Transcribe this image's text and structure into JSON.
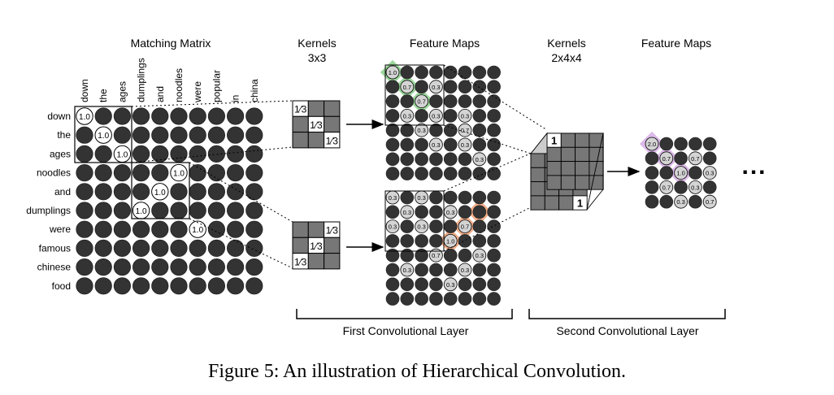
{
  "titles": {
    "matching_matrix": "Matching Matrix",
    "kernels1_line1": "Kernels",
    "kernels1_line2": "3x3",
    "feature_maps1": "Feature Maps",
    "kernels2_line1": "Kernels",
    "kernels2_line2": "2x4x4",
    "feature_maps2": "Feature Maps"
  },
  "matrix": {
    "column_words": [
      "down",
      "the",
      "ages",
      "dumplings",
      "and",
      "noodles",
      "were",
      "popular",
      "in",
      "china"
    ],
    "row_words": [
      "down",
      "the",
      "ages",
      "noodles",
      "and",
      "dumplings",
      "were",
      "famous",
      "chinese",
      "food"
    ],
    "matches": [
      {
        "row": 0,
        "col": 0,
        "label": "1.0"
      },
      {
        "row": 1,
        "col": 1,
        "label": "1.0"
      },
      {
        "row": 2,
        "col": 2,
        "label": "1.0"
      },
      {
        "row": 3,
        "col": 5,
        "label": "1.0"
      },
      {
        "row": 4,
        "col": 4,
        "label": "1.0"
      },
      {
        "row": 5,
        "col": 3,
        "label": "1.0"
      },
      {
        "row": 6,
        "col": 6,
        "label": "1.0"
      }
    ]
  },
  "kernel1": {
    "weight": "1⁄3",
    "diagonal": "main"
  },
  "kernel2": {
    "weight": "1⁄3",
    "diagonal": "anti"
  },
  "feature_map_top": {
    "highlight_color": "#8fd18f",
    "cells": [
      {
        "row": 0,
        "col": 0,
        "label": "1.0"
      },
      {
        "row": 1,
        "col": 1,
        "label": "0.7"
      },
      {
        "row": 1,
        "col": 3,
        "label": "0.3"
      },
      {
        "row": 2,
        "col": 2,
        "label": "0.7"
      },
      {
        "row": 3,
        "col": 1,
        "label": "0.3"
      },
      {
        "row": 3,
        "col": 3,
        "label": "0.3"
      },
      {
        "row": 3,
        "col": 5,
        "label": "0.3"
      },
      {
        "row": 4,
        "col": 2,
        "label": "0.3"
      },
      {
        "row": 4,
        "col": 5,
        "label": "0.7"
      },
      {
        "row": 5,
        "col": 3,
        "label": "0.3"
      },
      {
        "row": 5,
        "col": 5,
        "label": "0.3"
      },
      {
        "row": 6,
        "col": 6,
        "label": "0.3"
      }
    ]
  },
  "feature_map_bottom": {
    "highlight_color": "#f0a57c",
    "cells": [
      {
        "row": 0,
        "col": 0,
        "label": "0.3"
      },
      {
        "row": 0,
        "col": 2,
        "label": "0.3"
      },
      {
        "row": 1,
        "col": 1,
        "label": "0.3"
      },
      {
        "row": 1,
        "col": 4,
        "label": "0.3"
      },
      {
        "row": 2,
        "col": 0,
        "label": "0.3"
      },
      {
        "row": 2,
        "col": 2,
        "label": "0.3"
      },
      {
        "row": 2,
        "col": 5,
        "label": "0.7"
      },
      {
        "row": 3,
        "col": 4,
        "label": "1.0"
      },
      {
        "row": 4,
        "col": 3,
        "label": "0.7"
      },
      {
        "row": 4,
        "col": 6,
        "label": "0.3"
      },
      {
        "row": 5,
        "col": 1,
        "label": "0.3"
      },
      {
        "row": 5,
        "col": 5,
        "label": "0.3"
      },
      {
        "row": 6,
        "col": 4,
        "label": "0.3"
      }
    ]
  },
  "kernel3d": {
    "front_label": "1",
    "back_label": "1"
  },
  "feature_map2": {
    "highlight_color": "#d9b3e8",
    "cells": [
      {
        "row": 0,
        "col": 0,
        "label": "2.0"
      },
      {
        "row": 1,
        "col": 1,
        "label": "0.7"
      },
      {
        "row": 1,
        "col": 3,
        "label": "0.7"
      },
      {
        "row": 2,
        "col": 2,
        "label": "1.0"
      },
      {
        "row": 2,
        "col": 4,
        "label": "0.3"
      },
      {
        "row": 3,
        "col": 1,
        "label": "0.7"
      },
      {
        "row": 3,
        "col": 3,
        "label": "0.3"
      },
      {
        "row": 4,
        "col": 2,
        "label": "0.3"
      },
      {
        "row": 4,
        "col": 4,
        "label": "0.7"
      }
    ]
  },
  "continuation": "...",
  "layers": {
    "first": "First Convolutional Layer",
    "second": "Second Convolutional Layer"
  },
  "caption": "Figure 5: An illustration of Hierarchical Convolution."
}
